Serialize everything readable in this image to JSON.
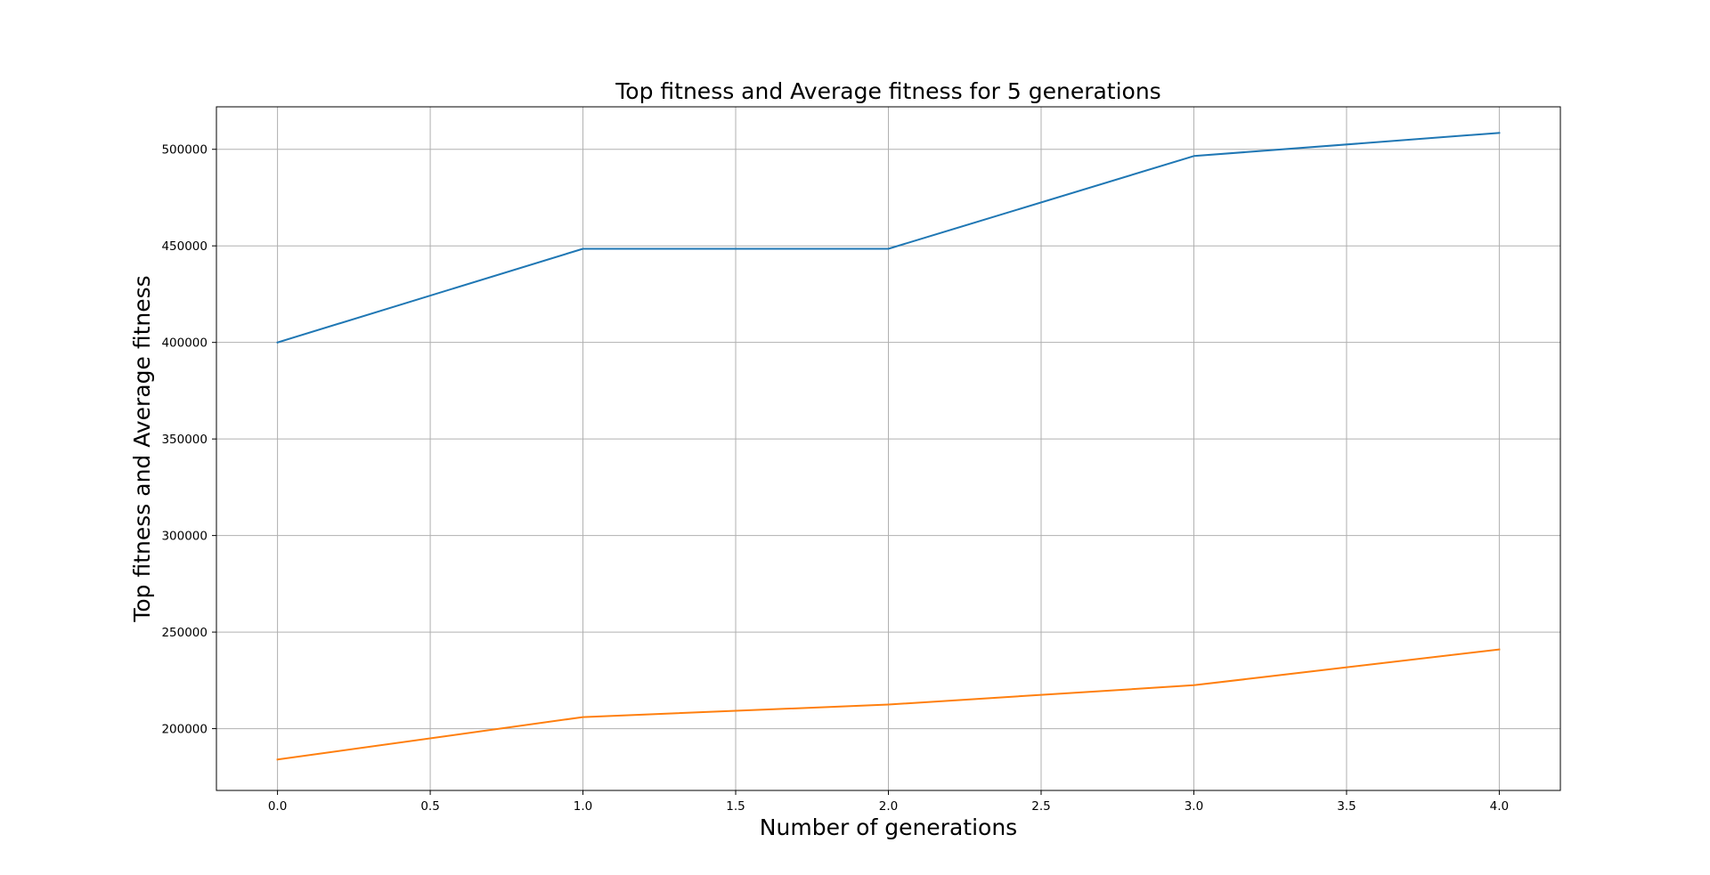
{
  "chart_data": {
    "type": "line",
    "title": "Top fitness and Average fitness for 5 generations",
    "xlabel": "Number of generations",
    "ylabel": "Top fitness and Average fitness",
    "xlim": [
      -0.2,
      4.2
    ],
    "ylim": [
      168000,
      522000
    ],
    "xticks": [
      0.0,
      0.5,
      1.0,
      1.5,
      2.0,
      2.5,
      3.0,
      3.5,
      4.0
    ],
    "xtick_labels": [
      "0.0",
      "0.5",
      "1.0",
      "1.5",
      "2.0",
      "2.5",
      "3.0",
      "3.5",
      "4.0"
    ],
    "yticks": [
      200000,
      250000,
      300000,
      350000,
      400000,
      450000,
      500000
    ],
    "ytick_labels": [
      "200000",
      "250000",
      "300000",
      "350000",
      "400000",
      "450000",
      "500000"
    ],
    "grid": true,
    "x": [
      0,
      1,
      2,
      3,
      4
    ],
    "series": [
      {
        "values": [
          400000,
          448500,
          448500,
          496500,
          508500
        ],
        "color": "#1f77b4"
      },
      {
        "values": [
          184000,
          206000,
          212500,
          222500,
          241000
        ],
        "color": "#ff7f0e"
      }
    ]
  }
}
